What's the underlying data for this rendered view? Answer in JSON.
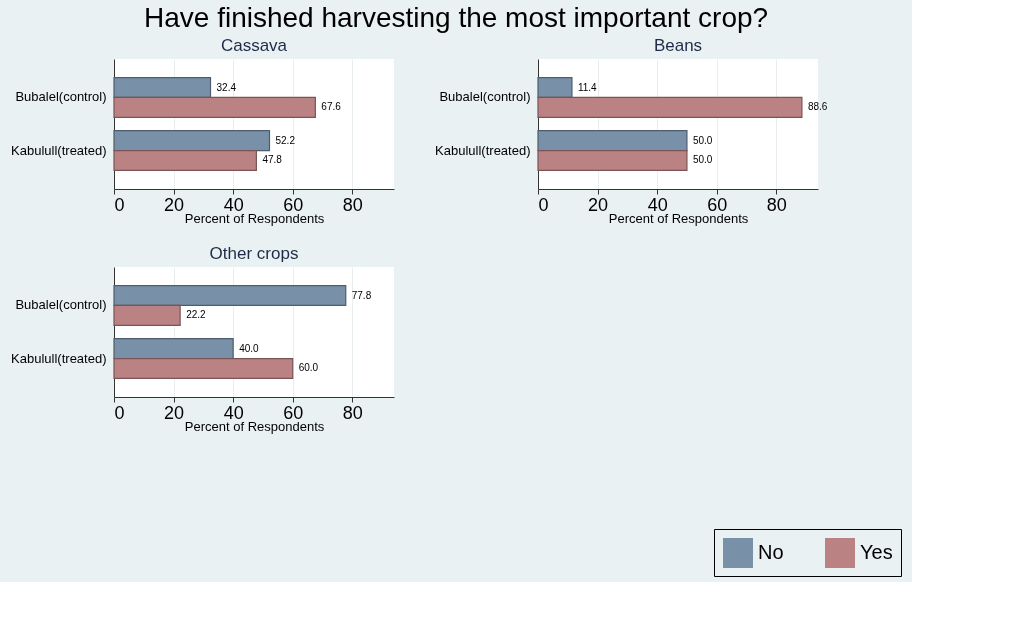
{
  "chart_data": [
    {
      "type": "bar",
      "orientation": "horizontal",
      "title": "Have finished harvesting the most important crop?",
      "subtitle": "Cassava",
      "xlabel": "Percent of Respondents",
      "categories": [
        "Bubalel(control)",
        "Kabulull(treated)"
      ],
      "xlim": [
        0,
        94
      ],
      "xticks": [
        0,
        20,
        40,
        60,
        80
      ],
      "grid": "x",
      "legend": "bottom right",
      "series": [
        {
          "name": "No",
          "color": "#7890a8",
          "values": [
            32.4,
            52.2
          ],
          "value_labels": [
            "32.4",
            "52.2"
          ]
        },
        {
          "name": "Yes",
          "color": "#bb8283",
          "values": [
            67.6,
            47.8
          ],
          "value_labels": [
            "67.6",
            "47.8"
          ]
        }
      ]
    },
    {
      "type": "bar",
      "orientation": "horizontal",
      "subtitle": "Beans",
      "xlabel": "Percent of Respondents",
      "categories": [
        "Bubalel(control)",
        "Kabulull(treated)"
      ],
      "xlim": [
        0,
        94
      ],
      "xticks": [
        0,
        20,
        40,
        60,
        80
      ],
      "grid": "x",
      "series": [
        {
          "name": "No",
          "color": "#7890a8",
          "values": [
            11.4,
            50.0
          ],
          "value_labels": [
            "11.4",
            "50.0"
          ]
        },
        {
          "name": "Yes",
          "color": "#bb8283",
          "values": [
            88.6,
            50.0
          ],
          "value_labels": [
            "88.6",
            "50.0"
          ]
        }
      ]
    },
    {
      "type": "bar",
      "orientation": "horizontal",
      "subtitle": "Other crops",
      "xlabel": "Percent of Respondents",
      "categories": [
        "Bubalel(control)",
        "Kabulull(treated)"
      ],
      "xlim": [
        0,
        94
      ],
      "xticks": [
        0,
        20,
        40,
        60,
        80
      ],
      "grid": "x",
      "series": [
        {
          "name": "No",
          "color": "#7890a8",
          "values": [
            77.8,
            40.0
          ],
          "value_labels": [
            "77.8",
            "40.0"
          ]
        },
        {
          "name": "Yes",
          "color": "#bb8283",
          "values": [
            22.2,
            60.0
          ],
          "value_labels": [
            "22.2",
            "60.0"
          ]
        }
      ]
    }
  ]
}
